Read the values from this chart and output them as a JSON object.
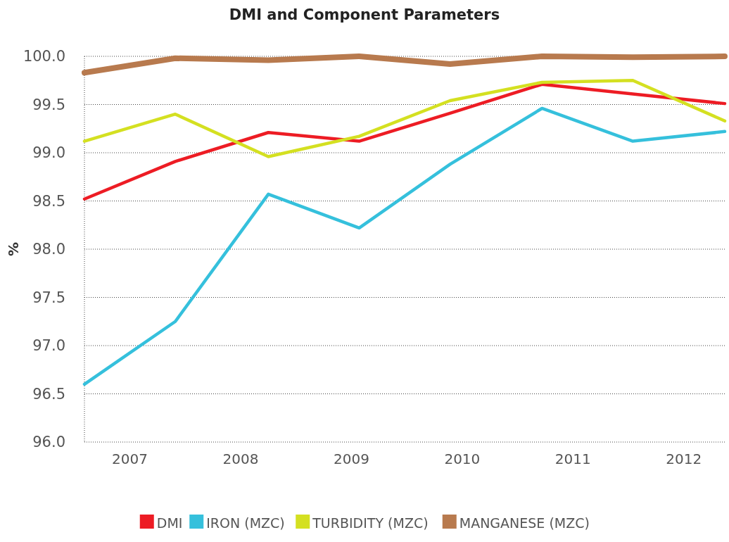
{
  "chart_data": {
    "type": "line",
    "title": "DMI and Component Parameters",
    "ylabel": "%",
    "x": [
      2006.59,
      2007.41,
      2008.25,
      2009.07,
      2009.89,
      2010.72,
      2011.54,
      2012.37
    ],
    "xlim": [
      2006.59,
      2012.37
    ],
    "xticks": [
      2007,
      2008,
      2009,
      2010,
      2011,
      2012
    ],
    "ylim": [
      96,
      100
    ],
    "yticks": [
      {
        "value": 96,
        "label": "96.0"
      },
      {
        "value": 96.5,
        "label": "96.5"
      },
      {
        "value": 97,
        "label": "97.0"
      },
      {
        "value": 97.5,
        "label": "97.5"
      },
      {
        "value": 98,
        "label": "98.0"
      },
      {
        "value": 98.5,
        "label": "98.5"
      },
      {
        "value": 99,
        "label": "99.0"
      },
      {
        "value": 99.5,
        "label": "99.5"
      },
      {
        "value": 100,
        "label": "100.0"
      }
    ],
    "grid": "y",
    "legend": "bottom",
    "line_style": "solid",
    "series": [
      {
        "name": "DMI",
        "color": "#ed1c24",
        "values": [
          98.52,
          98.91,
          99.21,
          99.12,
          99.41,
          99.71,
          99.61,
          99.51
        ]
      },
      {
        "name": "IRON (MZC)",
        "color": "#35c0dc",
        "values": [
          96.6,
          97.25,
          98.57,
          98.22,
          98.88,
          99.46,
          99.12,
          99.22
        ]
      },
      {
        "name": "TURBIDITY (MZC)",
        "color": "#d4e021",
        "values": [
          99.12,
          99.4,
          98.96,
          99.17,
          99.54,
          99.73,
          99.75,
          99.33
        ]
      },
      {
        "name": "MANGANESE (MZC)",
        "color": "#b87a4e",
        "values": [
          99.83,
          99.98,
          99.96,
          100,
          99.92,
          100,
          99.99,
          100
        ]
      }
    ]
  }
}
